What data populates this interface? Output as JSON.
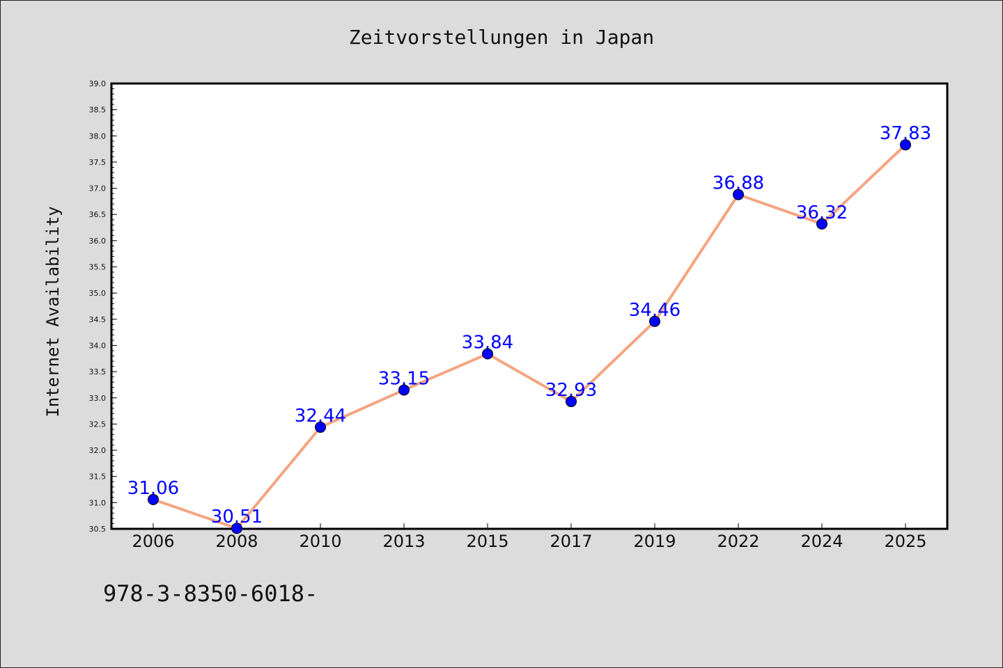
{
  "chart_data": {
    "type": "line",
    "title": "Zeitvorstellungen in Japan",
    "xlabel": "",
    "ylabel": "Internet Availability",
    "categories": [
      "2006",
      "2008",
      "2010",
      "2013",
      "2015",
      "2017",
      "2019",
      "2022",
      "2024",
      "2025"
    ],
    "series": [
      {
        "values": [
          31.06,
          30.51,
          32.44,
          33.15,
          33.84,
          32.93,
          34.46,
          36.88,
          36.32,
          37.83
        ],
        "labels": [
          "31.06",
          "30.51",
          "32.44",
          "33.15",
          "33.84",
          "32.93",
          "34.46",
          "36.88",
          "36.32",
          "37.83"
        ],
        "line_color": "#f4a582",
        "marker_color": "#0000ff"
      }
    ],
    "ylim": [
      30.5,
      39.0
    ],
    "yticks": [
      "30.5",
      "31.0",
      "31.5",
      "32.0",
      "32.5",
      "33.0",
      "33.5",
      "34.0",
      "34.5",
      "35.0",
      "35.5",
      "36.0",
      "36.5",
      "37.0",
      "37.5",
      "38.0",
      "38.5",
      "39.0"
    ],
    "grid": false,
    "legend": "none"
  },
  "footer": {
    "code": "978-3-8350-6018-"
  }
}
